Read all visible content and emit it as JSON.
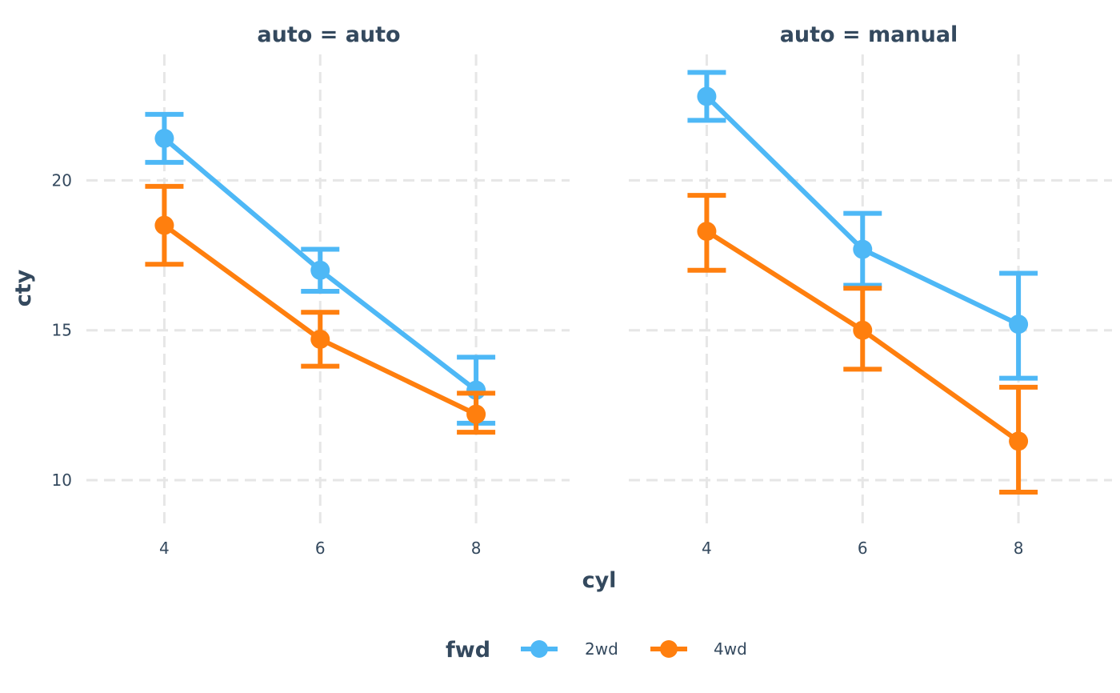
{
  "chart_data": {
    "type": "line",
    "xlabel": "cyl",
    "ylabel": "cty",
    "x_ticks": [
      4,
      6,
      8
    ],
    "y_ticks": [
      10,
      15,
      20
    ],
    "xlim": [
      3,
      9.2
    ],
    "ylim": [
      8.4,
      24.2
    ],
    "grid": true,
    "legend": {
      "title": "fwd",
      "placement": "bottom",
      "entries": [
        "2wd",
        "4wd"
      ]
    },
    "colors": {
      "2wd": "#4eb8f6",
      "4wd": "#ff7f0e"
    },
    "panels": [
      {
        "title": "auto = auto",
        "series": [
          {
            "name": "2wd",
            "points": [
              {
                "x": 4,
                "y": 21.4,
                "low": 20.6,
                "high": 22.2
              },
              {
                "x": 6,
                "y": 17.0,
                "low": 16.3,
                "high": 17.7
              },
              {
                "x": 8,
                "y": 13.0,
                "low": 11.9,
                "high": 14.1
              }
            ]
          },
          {
            "name": "4wd",
            "points": [
              {
                "x": 4,
                "y": 18.5,
                "low": 17.2,
                "high": 19.8
              },
              {
                "x": 6,
                "y": 14.7,
                "low": 13.8,
                "high": 15.6
              },
              {
                "x": 8,
                "y": 12.2,
                "low": 11.6,
                "high": 12.9
              }
            ]
          }
        ]
      },
      {
        "title": "auto = manual",
        "series": [
          {
            "name": "2wd",
            "points": [
              {
                "x": 4,
                "y": 22.8,
                "low": 22.0,
                "high": 23.6
              },
              {
                "x": 6,
                "y": 17.7,
                "low": 16.5,
                "high": 18.9
              },
              {
                "x": 8,
                "y": 15.2,
                "low": 13.4,
                "high": 16.9
              }
            ]
          },
          {
            "name": "4wd",
            "points": [
              {
                "x": 4,
                "y": 18.3,
                "low": 17.0,
                "high": 19.5
              },
              {
                "x": 6,
                "y": 15.0,
                "low": 13.7,
                "high": 16.4
              },
              {
                "x": 8,
                "y": 11.3,
                "low": 9.6,
                "high": 13.1
              }
            ]
          }
        ]
      }
    ]
  }
}
